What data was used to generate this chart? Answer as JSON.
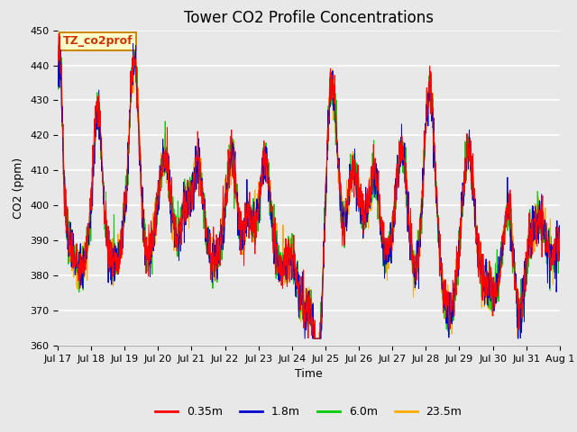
{
  "title": "Tower CO2 Profile Concentrations",
  "xlabel": "Time",
  "ylabel": "CO2 (ppm)",
  "ylim": [
    360,
    450
  ],
  "yticks": [
    360,
    370,
    380,
    390,
    400,
    410,
    420,
    430,
    440,
    450
  ],
  "colors": {
    "0.35m": "#ff0000",
    "1.8m": "#0000cc",
    "6.0m": "#00cc00",
    "23.5m": "#ffaa00"
  },
  "legend_labels": [
    "0.35m",
    "1.8m",
    "6.0m",
    "23.5m"
  ],
  "annotation_text": "TZ_co2prof",
  "annotation_bg": "#ffffcc",
  "annotation_border": "#cc8800",
  "fig_bg_color": "#e8e8e8",
  "plot_bg_color": "#e8e8e8",
  "grid_color": "#ffffff",
  "title_fontsize": 12,
  "axis_label_fontsize": 9,
  "tick_label_fontsize": 8
}
